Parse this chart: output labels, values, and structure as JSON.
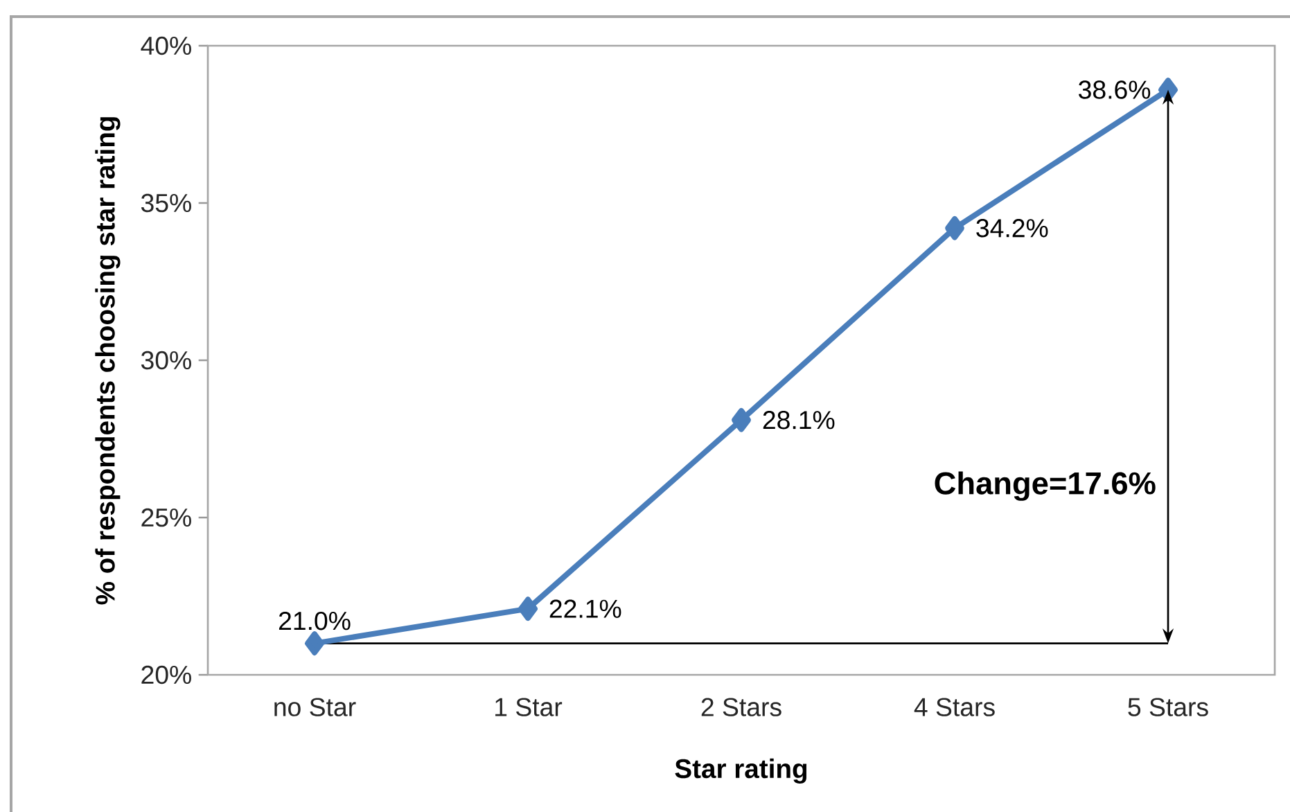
{
  "chart_data": {
    "type": "line",
    "xlabel": "Star rating",
    "ylabel": "% of respondents choosing star rating",
    "categories": [
      "no Star",
      "1 Star",
      "2 Stars",
      "4 Stars",
      "5 Stars"
    ],
    "series": [
      {
        "color": "#4a7ebb",
        "values": [
          21.0,
          22.1,
          28.1,
          34.2,
          38.6
        ],
        "value_labels": [
          "21.0%",
          "22.1%",
          "28.1%",
          "34.2%",
          "38.6%"
        ]
      }
    ],
    "ylim": [
      20,
      40
    ],
    "yticks": [
      {
        "value": 20,
        "label": "20%"
      },
      {
        "value": 25,
        "label": "25%"
      },
      {
        "value": 30,
        "label": "30%"
      },
      {
        "value": 35,
        "label": "35%"
      },
      {
        "value": 40,
        "label": "40%"
      }
    ],
    "marker": "diamond",
    "line_style": "solid",
    "ref_lines": [
      {
        "axis": "y",
        "value": 21.0,
        "color": "#000000"
      }
    ],
    "annotations": [
      "Change=17.6%"
    ]
  }
}
